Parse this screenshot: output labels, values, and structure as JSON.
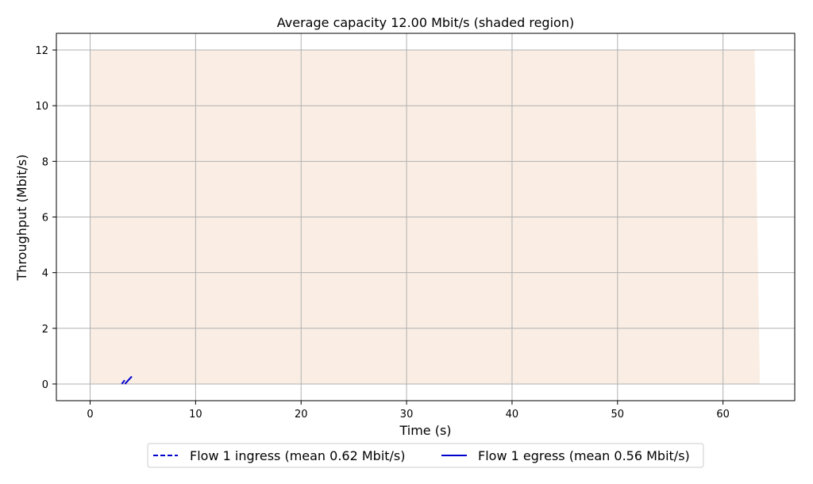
{
  "chart_data": {
    "type": "line",
    "title": "Average capacity 12.00 Mbit/s (shaded region)",
    "xlabel": "Time (s)",
    "ylabel": "Throughput (Mbit/s)",
    "xlim": [
      -3.2,
      66.8
    ],
    "ylim": [
      -0.6,
      12.6
    ],
    "xticks": [
      0,
      10,
      20,
      30,
      40,
      50,
      60
    ],
    "yticks": [
      0,
      2,
      4,
      6,
      8,
      10,
      12
    ],
    "grid": true,
    "legend_placement": "bottom-center",
    "capacity": {
      "x": [
        0,
        63,
        63.5
      ],
      "y": [
        12,
        12,
        0
      ],
      "color": "#faeee4"
    },
    "series": [
      {
        "name": "Flow 1 ingress (mean 0.62 Mbit/s)",
        "style": "dashed",
        "color": "#0000cc",
        "x": [
          3.0,
          3.4
        ],
        "y": [
          0.0,
          0.2
        ]
      },
      {
        "name": "Flow 1 egress (mean 0.56 Mbit/s)",
        "style": "solid",
        "color": "#0000cc",
        "x": [
          3.3,
          3.95
        ],
        "y": [
          0.0,
          0.27
        ]
      }
    ]
  }
}
